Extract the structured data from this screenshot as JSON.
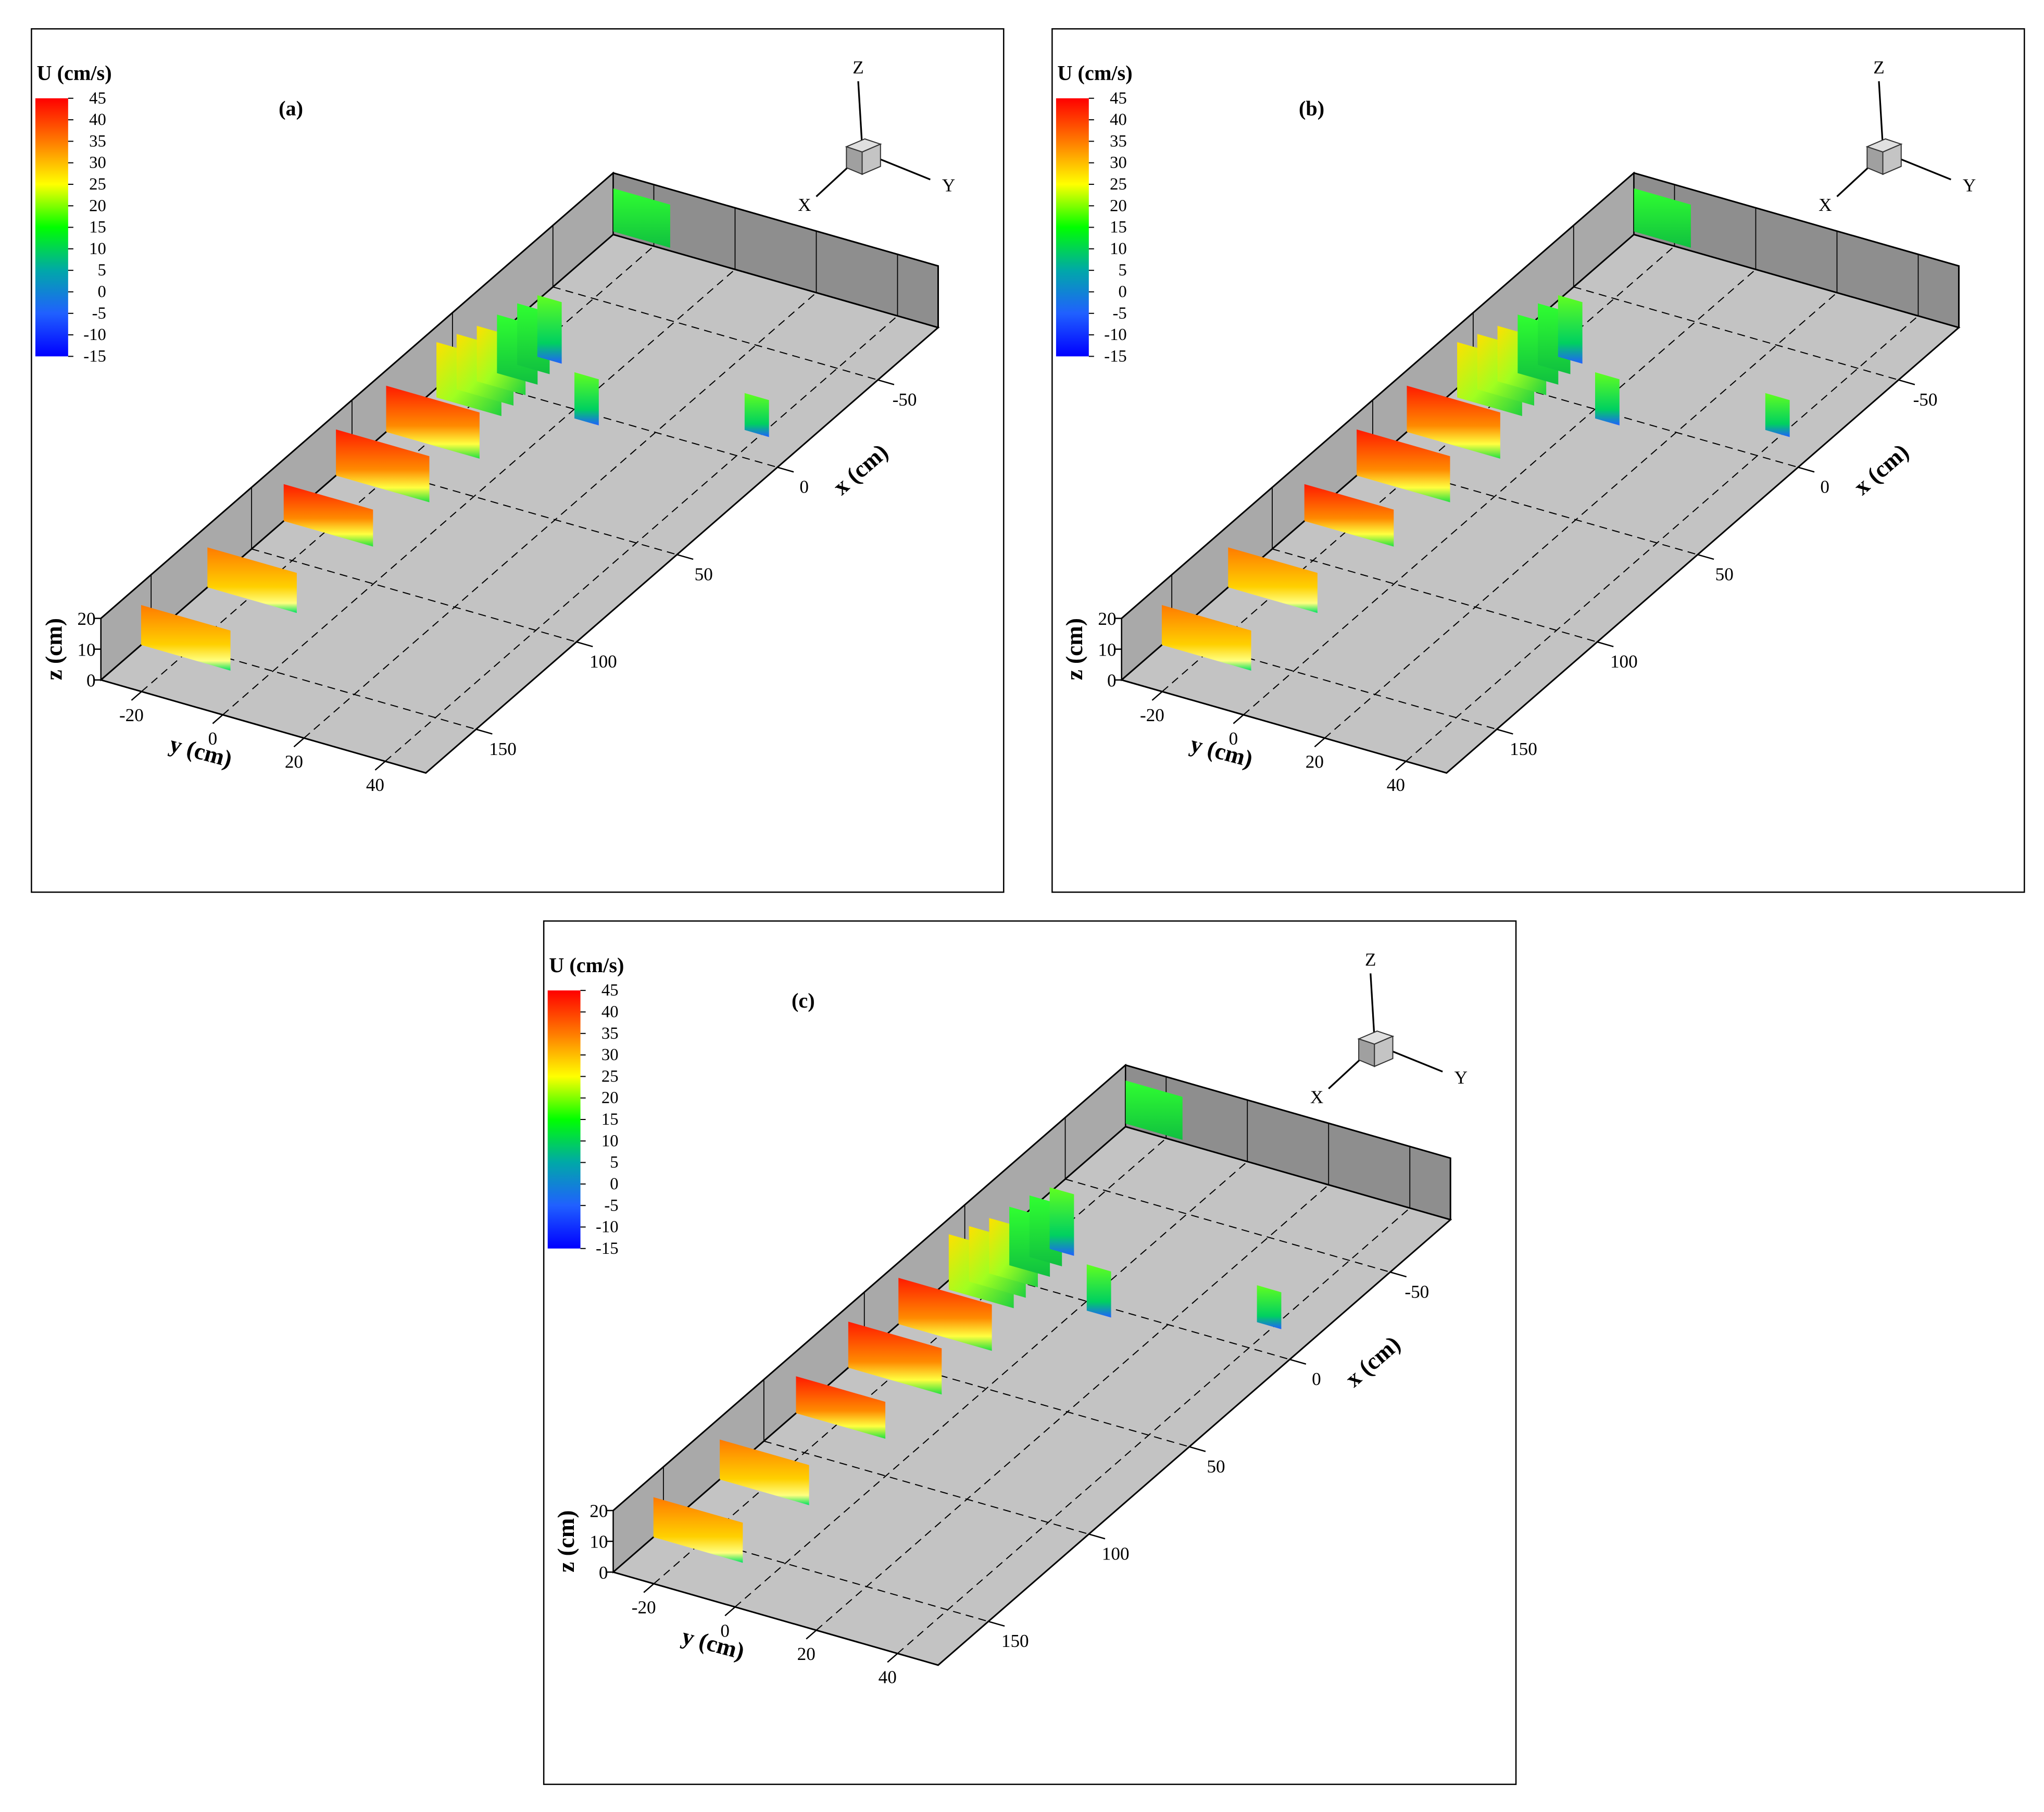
{
  "chart_data": [
    {
      "type": "contour3d",
      "panel_label": "(a)",
      "colorbar": {
        "title": "U (cm/s)",
        "ticks": [
          45,
          40,
          35,
          30,
          25,
          20,
          15,
          10,
          5,
          0,
          -5,
          -10,
          -15
        ],
        "colormap": [
          "#ff0000",
          "#ff7a00",
          "#ffff00",
          "#00ff00",
          "#00a8a8",
          "#2060ff",
          "#0000ff"
        ]
      },
      "xlabel": "x (cm)",
      "ylabel": "y (cm)",
      "zlabel": "z (cm)",
      "xlim": [
        -80,
        175
      ],
      "ylim": [
        -30,
        50
      ],
      "zlim": [
        0,
        20
      ],
      "xticks": [
        -50,
        0,
        50,
        100,
        150
      ],
      "yticks": [
        -20,
        0,
        20,
        40
      ],
      "zticks": [
        0,
        10,
        20
      ],
      "triad": {
        "x": "X",
        "y": "Y",
        "z": "Z"
      }
    },
    {
      "type": "contour3d",
      "panel_label": "(b)",
      "colorbar": {
        "title": "U (cm/s)",
        "ticks": [
          45,
          40,
          35,
          30,
          25,
          20,
          15,
          10,
          5,
          0,
          -5,
          -10,
          -15
        ],
        "colormap": [
          "#ff0000",
          "#ff7a00",
          "#ffff00",
          "#00ff00",
          "#00a8a8",
          "#2060ff",
          "#0000ff"
        ]
      },
      "xlabel": "x (cm)",
      "ylabel": "y (cm)",
      "zlabel": "z (cm)",
      "xlim": [
        -80,
        175
      ],
      "ylim": [
        -30,
        50
      ],
      "zlim": [
        0,
        20
      ],
      "xticks": [
        -50,
        0,
        50,
        100,
        150
      ],
      "yticks": [
        -20,
        0,
        20,
        40
      ],
      "zticks": [
        0,
        10,
        20
      ],
      "triad": {
        "x": "X",
        "y": "Y",
        "z": "Z"
      }
    },
    {
      "type": "contour3d",
      "panel_label": "(c)",
      "colorbar": {
        "title": "U (cm/s)",
        "ticks": [
          45,
          40,
          35,
          30,
          25,
          20,
          15,
          10,
          5,
          0,
          -5,
          -10,
          -15
        ],
        "colormap": [
          "#ff0000",
          "#ff7a00",
          "#ffff00",
          "#00ff00",
          "#00a8a8",
          "#2060ff",
          "#0000ff"
        ]
      },
      "xlabel": "x (cm)",
      "ylabel": "y (cm)",
      "zlabel": "z (cm)",
      "xlim": [
        -80,
        175
      ],
      "ylim": [
        -30,
        50
      ],
      "zlim": [
        0,
        20
      ],
      "xticks": [
        -50,
        0,
        50,
        100,
        150
      ],
      "yticks": [
        -20,
        0,
        20,
        40
      ],
      "zticks": [
        0,
        10,
        20
      ],
      "triad": {
        "x": "X",
        "y": "Y",
        "z": "Z"
      }
    }
  ]
}
